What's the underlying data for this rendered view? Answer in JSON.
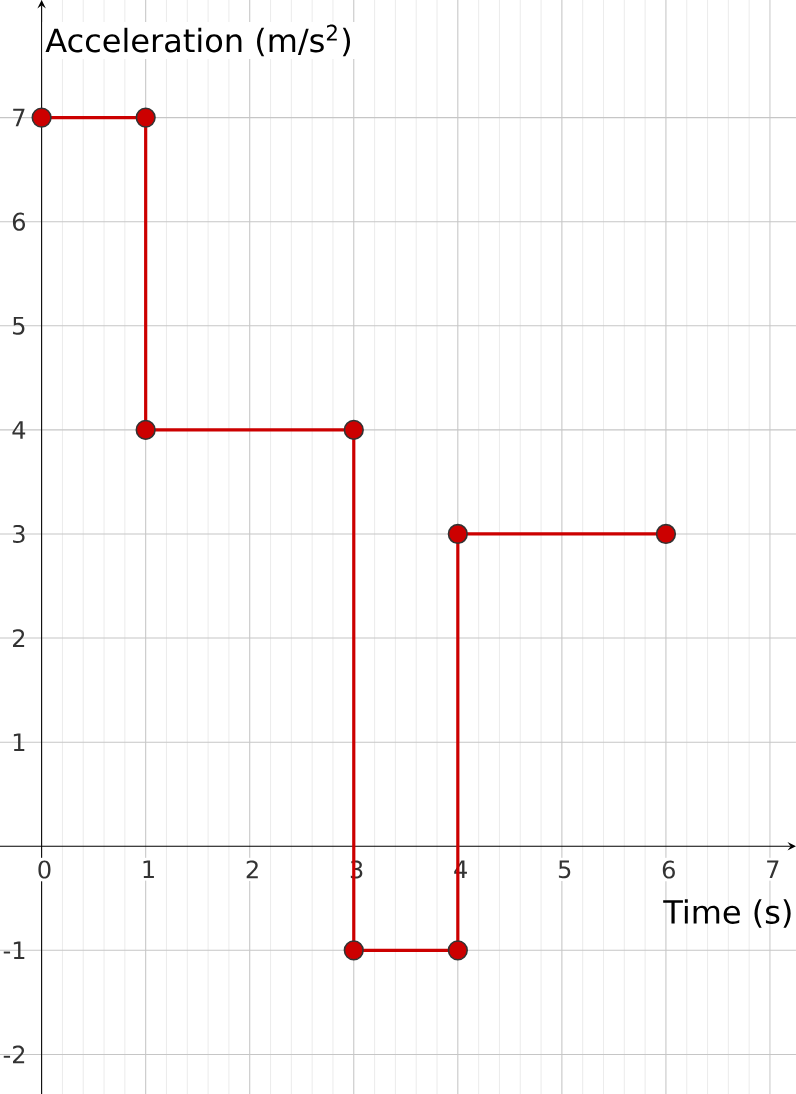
{
  "chart_data": {
    "type": "line",
    "xlabel": "Time (s)",
    "ylabel": "Acceleration (m/s$^{2}$)",
    "x": [
      0,
      1,
      1,
      3,
      3,
      4,
      4,
      6
    ],
    "series": [
      {
        "color": "#cc0000",
        "values": [
          7,
          7,
          4,
          4,
          -1,
          -1,
          3,
          3
        ]
      }
    ],
    "xlim": [
      -0.4,
      7.25
    ],
    "ylim": [
      -2.38,
      8.13
    ],
    "xticks": [
      0,
      1,
      2,
      3,
      4,
      5,
      6,
      7
    ],
    "yticks": [
      -2,
      -1,
      1,
      2,
      3,
      4,
      5,
      6,
      7
    ],
    "grid": true,
    "marker": "circle",
    "line_style": "solid"
  }
}
